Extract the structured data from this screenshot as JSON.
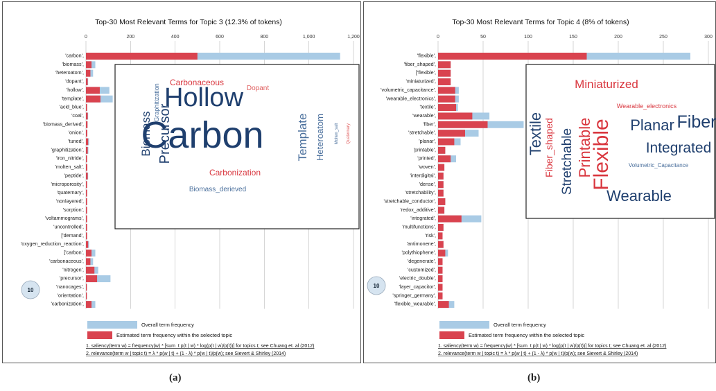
{
  "colors": {
    "overall": "#a9cbe5",
    "estimated": "#d9434f",
    "word_dark": "#1f3f6e",
    "word_mid": "#4a6f9c",
    "word_red": "#d9363e",
    "word_lightred": "#e06060"
  },
  "panels": [
    {
      "caption": "(a)",
      "lambda_label": "10",
      "legend": {
        "overall": "Overall term frequency",
        "estimated": "Estimated term frequency within the selected topic"
      },
      "footnotes": [
        "1. saliency(term w) = frequency(w) * [sum_t p(t | w) * log(p(t | w)/p(t))] for topics t; see Chuang et. al (2012)",
        "2. relevance(term w | topic t) = λ * p(w | t) + (1 - λ) * p(w | t)/p(w); see Sievert & Shirley (2014)"
      ],
      "wordcloud": [
        {
          "text": "Carbon",
          "color": "word_dark",
          "size": 54,
          "rot": 0
        },
        {
          "text": "Hollow",
          "color": "word_dark",
          "size": 38,
          "rot": 0
        },
        {
          "text": "Precursor",
          "color": "word_dark",
          "size": 20,
          "rot": -90
        },
        {
          "text": "Biomass",
          "color": "word_dark",
          "size": 17,
          "rot": -90
        },
        {
          "text": "Template",
          "color": "word_mid",
          "size": 17,
          "rot": -90
        },
        {
          "text": "Heteroatom",
          "color": "word_mid",
          "size": 13,
          "rot": -90
        },
        {
          "text": "Carbonaceous",
          "color": "word_red",
          "size": 12,
          "rot": 0
        },
        {
          "text": "Carbonization",
          "color": "word_red",
          "size": 12,
          "rot": 0
        },
        {
          "text": "Dopant",
          "color": "word_lightred",
          "size": 10,
          "rot": 0
        },
        {
          "text": "Biomass_derieved",
          "color": "word_mid",
          "size": 10,
          "rot": 0
        },
        {
          "text": "Graphitization",
          "color": "word_mid",
          "size": 9,
          "rot": -90
        },
        {
          "text": "Molten_salt",
          "color": "word_mid",
          "size": 6,
          "rot": -90
        },
        {
          "text": "Quaternary",
          "color": "word_lightred",
          "size": 6,
          "rot": -90
        }
      ]
    },
    {
      "caption": "(b)",
      "lambda_label": "10",
      "legend": {
        "overall": "Overall term frequency",
        "estimated": "Estimated term frequency within the selected topic"
      },
      "footnotes": [
        "1. saliency(term w) = frequency(w) * [sum_t p(t | w) * log(p(t | w)/p(t))] for topics t; see Chuang et. al (2012)",
        "2. relevance(term w | topic t) = λ * p(w | t) + (1 - λ) * p(w | t)/p(w); see Sievert & Shirley (2014)"
      ],
      "wordcloud": [
        {
          "text": "Flexible",
          "color": "word_red",
          "size": 30,
          "rot": -90
        },
        {
          "text": "Printable",
          "color": "word_red",
          "size": 22,
          "rot": -90
        },
        {
          "text": "Fiber_shaped",
          "color": "word_red",
          "size": 14,
          "rot": -90
        },
        {
          "text": "Textile",
          "color": "word_dark",
          "size": 22,
          "rot": -90
        },
        {
          "text": "Stretchable",
          "color": "word_dark",
          "size": 19,
          "rot": -90
        },
        {
          "text": "Miniaturized",
          "color": "word_red",
          "size": 17,
          "rot": 0
        },
        {
          "text": "Wearable_electronics",
          "color": "word_red",
          "size": 9,
          "rot": 0
        },
        {
          "text": "Planar",
          "color": "word_dark",
          "size": 22,
          "rot": 0
        },
        {
          "text": "Fiber",
          "color": "word_dark",
          "size": 25,
          "rot": 0
        },
        {
          "text": "Integrated",
          "color": "word_dark",
          "size": 21,
          "rot": 0
        },
        {
          "text": "Volumetric_Capacitance",
          "color": "word_mid",
          "size": 8,
          "rot": 0
        },
        {
          "text": "Wearable",
          "color": "word_dark",
          "size": 22,
          "rot": 0
        }
      ]
    }
  ],
  "chart_data": [
    {
      "type": "bar",
      "orientation": "horizontal",
      "title": "Top-30 Most Relevant Terms for Topic 3 (12.3% of tokens)",
      "xlim": [
        0,
        1200
      ],
      "xticks": [
        "0",
        "200",
        "400",
        "600",
        "800",
        "1,000",
        "1,200"
      ],
      "categories": [
        "'carbon',",
        "'biomass',",
        "'heteroatom',",
        "'dopant',",
        "'hollow',",
        "'template',",
        "'acid_blue',",
        "'coal',",
        "'biomass_derived',",
        "'onion',",
        "'tuned',",
        "'graphitization',",
        "'iron_nitride',",
        "'molten_salt',",
        "'peptide',",
        "'microporosity',",
        "'quaternary',",
        "'nonlayered',",
        "'sorption',",
        "'voltammograms',",
        "'uncontrolled',",
        "['demand',",
        "'oxygen_reduction_reaction',",
        "['carbon',",
        "'carbonaceous',",
        "'nitrogen',",
        "'precursor',",
        "'nanocages',",
        "'orientation',",
        "'carbonization',"
      ],
      "series": [
        {
          "name": "Overall term frequency",
          "values": [
            1140,
            42,
            32,
            10,
            105,
            120,
            5,
            10,
            7,
            6,
            14,
            11,
            5,
            6,
            10,
            5,
            5,
            5,
            5,
            5,
            5,
            5,
            14,
            42,
            32,
            55,
            110,
            4,
            4,
            42
          ]
        },
        {
          "name": "Estimated term frequency within the selected topic",
          "values": [
            500,
            25,
            20,
            8,
            62,
            65,
            5,
            8,
            7,
            6,
            10,
            8,
            5,
            6,
            8,
            5,
            5,
            5,
            5,
            5,
            5,
            5,
            10,
            25,
            20,
            38,
            50,
            4,
            4,
            25
          ]
        }
      ]
    },
    {
      "type": "bar",
      "orientation": "horizontal",
      "title": "Top-30 Most Relevant Terms for Topic 4 (8% of tokens)",
      "xlim": [
        0,
        300
      ],
      "xticks": [
        "0",
        "50",
        "100",
        "150",
        "200",
        "250",
        "300"
      ],
      "categories": [
        "'flexible',",
        "'fiber_shaped',",
        "['flexible',",
        "'miniaturized',",
        "'volumetric_capacitance',",
        "'wearable_electronics',",
        "'textile',",
        "'wearable',",
        "'fiber',",
        "'stretchable',",
        "'planar',",
        "'printable',",
        "'printed',",
        "'woven',",
        "'interdigital',",
        "'dense',",
        "'stretchability',",
        "'stretchable_conductor',",
        "'redox_additive',",
        "'integrated',",
        "'multifunctions',",
        "'risk',",
        "'antimonene',",
        "'polythiophene',",
        "'degenerate',",
        "'customized',",
        "'electric_double',",
        "'layer_capacitor',",
        "'springer_germany',",
        "'flexible_wearable',"
      ],
      "series": [
        {
          "name": "Overall term frequency",
          "values": [
            280,
            14,
            14,
            14,
            23,
            23,
            22,
            57,
            95,
            45,
            25,
            8,
            20,
            7,
            6,
            6,
            6,
            8,
            7,
            48,
            6,
            5,
            6,
            11,
            5,
            5,
            5,
            5,
            5,
            18
          ]
        },
        {
          "name": "Estimated term frequency within the selected topic",
          "values": [
            165,
            14,
            14,
            14,
            19,
            19,
            20,
            38,
            55,
            30,
            18,
            8,
            14,
            7,
            6,
            6,
            6,
            8,
            7,
            26,
            6,
            5,
            6,
            8,
            5,
            5,
            5,
            5,
            5,
            12
          ]
        }
      ]
    }
  ]
}
